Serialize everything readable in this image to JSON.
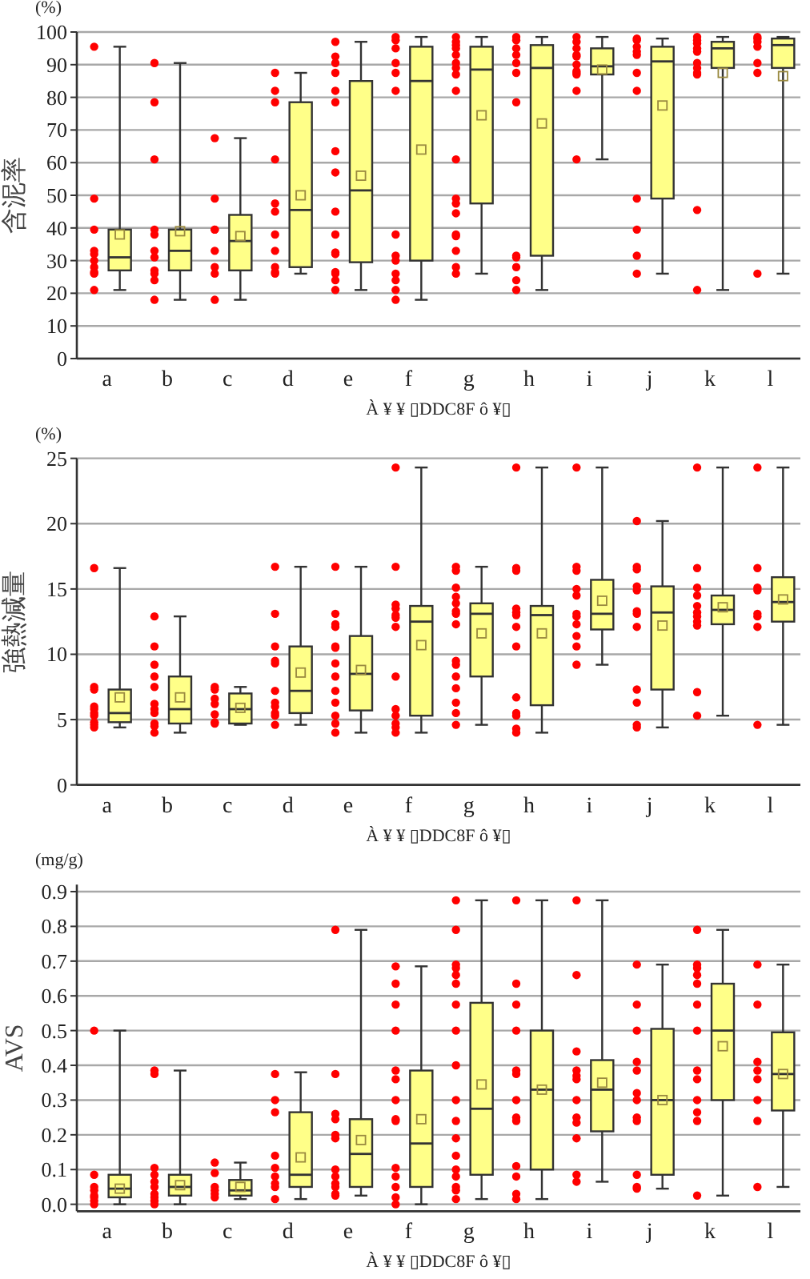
{
  "chart_data": [
    {
      "type": "box",
      "ylabel": "含泥率",
      "xlabel": "À ¥ ¥ ▯DDC8F ô ¥▯",
      "annotations": [
        "(%)"
      ],
      "categories": [
        "a",
        "b",
        "c",
        "d",
        "e",
        "f",
        "g",
        "h",
        "i",
        "j",
        "k",
        "l"
      ],
      "ylim": [
        0,
        100
      ],
      "yticks": [
        0,
        10,
        20,
        30,
        40,
        50,
        60,
        70,
        80,
        90,
        100
      ],
      "grid": "y",
      "series": [
        {
          "type": "scatter",
          "color": "#ff0000",
          "marker": "circle",
          "x": [
            "a",
            "a",
            "a",
            "a",
            "a",
            "a",
            "a",
            "a",
            "a",
            "a",
            "b",
            "b",
            "b",
            "b",
            "b",
            "b",
            "b",
            "b",
            "b",
            "b",
            "b",
            "c",
            "c",
            "c",
            "c",
            "c",
            "c",
            "c",
            "c",
            "d",
            "d",
            "d",
            "d",
            "d",
            "d",
            "d",
            "d",
            "d",
            "d",
            "d",
            "e",
            "e",
            "e",
            "e",
            "e",
            "e",
            "e",
            "e",
            "e",
            "e",
            "e",
            "e",
            "e",
            "e",
            "e",
            "e",
            "f",
            "f",
            "f",
            "f",
            "f",
            "f",
            "f",
            "f",
            "f",
            "f",
            "f",
            "f",
            "f",
            "g",
            "g",
            "g",
            "g",
            "g",
            "g",
            "g",
            "g",
            "g",
            "g",
            "g",
            "g",
            "g",
            "g",
            "g",
            "g",
            "g",
            "g",
            "h",
            "h",
            "h",
            "h",
            "h",
            "h",
            "h",
            "h",
            "h",
            "h",
            "h",
            "h",
            "i",
            "i",
            "i",
            "i",
            "i",
            "i",
            "i",
            "i",
            "i",
            "i",
            "i",
            "j",
            "j",
            "j",
            "j",
            "j",
            "j",
            "j",
            "j",
            "j",
            "j",
            "j",
            "k",
            "k",
            "k",
            "k",
            "k",
            "k",
            "k",
            "k",
            "k",
            "k",
            "k",
            "l",
            "l",
            "l",
            "l",
            "l",
            "l",
            "l"
          ],
          "values": [
            95.5,
            49,
            39.5,
            33,
            32,
            30,
            28,
            26.5,
            26,
            21,
            90.5,
            78.5,
            61,
            39.5,
            38,
            33,
            31,
            27,
            26,
            24,
            18,
            67.5,
            49,
            39.5,
            39.5,
            33,
            28,
            26,
            18,
            87.5,
            82,
            78.5,
            61,
            47.5,
            45,
            38,
            33,
            28,
            26.5,
            26,
            97,
            92.5,
            90.5,
            87.5,
            82,
            78.5,
            63.5,
            57,
            45,
            38,
            32.5,
            32,
            26.5,
            26,
            24,
            21,
            98.5,
            97.5,
            95,
            90.5,
            87.5,
            82,
            38,
            31.5,
            30,
            26,
            24,
            21,
            18,
            98.5,
            97,
            96,
            95,
            93,
            90.5,
            89,
            87,
            82,
            61,
            49,
            47.5,
            44.5,
            38,
            37.5,
            33,
            28,
            26,
            98.5,
            97.5,
            95,
            93,
            90.5,
            87.5,
            78.5,
            31.5,
            31,
            28,
            24,
            21,
            98.5,
            97,
            95,
            93,
            92.5,
            90,
            88,
            87.5,
            87,
            82,
            61,
            98,
            97.5,
            95.5,
            94,
            93,
            87.5,
            82,
            49,
            39.5,
            31.5,
            26,
            98.5,
            97.5,
            96.5,
            95,
            94,
            90.5,
            89,
            87.5,
            87,
            45.5,
            21,
            98.5,
            98,
            97,
            95.5,
            90.5,
            87.5,
            26
          ]
        },
        {
          "type": "box",
          "color": "#ffff88",
          "boxes": [
            {
              "low": 21,
              "q1": 27,
              "median": 31,
              "q3": 39.5,
              "high": 95.5,
              "mean": 38
            },
            {
              "low": 18,
              "q1": 27,
              "median": 33,
              "q3": 39.5,
              "high": 90.5,
              "mean": 39
            },
            {
              "low": 18,
              "q1": 27,
              "median": 36,
              "q3": 44,
              "high": 67.5,
              "mean": 37.5
            },
            {
              "low": 26,
              "q1": 28,
              "median": 45.5,
              "q3": 78.5,
              "high": 87.5,
              "mean": 50
            },
            {
              "low": 21,
              "q1": 29.5,
              "median": 51.5,
              "q3": 85,
              "high": 97,
              "mean": 56
            },
            {
              "low": 18,
              "q1": 30,
              "median": 85,
              "q3": 95.5,
              "high": 98.5,
              "mean": 64
            },
            {
              "low": 26,
              "q1": 47.5,
              "median": 88.5,
              "q3": 95.5,
              "high": 98.5,
              "mean": 74.5
            },
            {
              "low": 21,
              "q1": 31.5,
              "median": 89,
              "q3": 96,
              "high": 98.5,
              "mean": 72
            },
            {
              "low": 61,
              "q1": 87,
              "median": 89.5,
              "q3": 95,
              "high": 98.5,
              "mean": 88.5
            },
            {
              "low": 26,
              "q1": 49,
              "median": 91,
              "q3": 95.5,
              "high": 98,
              "mean": 77.5
            },
            {
              "low": 21,
              "q1": 89,
              "median": 95,
              "q3": 97,
              "high": 98.5,
              "mean": 87.5
            },
            {
              "low": 26,
              "q1": 89,
              "median": 96,
              "q3": 98,
              "high": 98.5,
              "mean": 86.5
            }
          ]
        }
      ]
    },
    {
      "type": "box",
      "ylabel": "強熱減量",
      "xlabel": "À ¥ ¥ ▯DDC8F ô ¥▯",
      "annotations": [
        "(%)"
      ],
      "categories": [
        "a",
        "b",
        "c",
        "d",
        "e",
        "f",
        "g",
        "h",
        "i",
        "j",
        "k",
        "l"
      ],
      "ylim": [
        0,
        25
      ],
      "yticks": [
        0,
        5,
        10,
        15,
        20,
        25
      ],
      "grid": "y",
      "series": [
        {
          "type": "scatter",
          "color": "#ff0000",
          "marker": "circle",
          "x": [
            "a",
            "a",
            "a",
            "a",
            "a",
            "a",
            "a",
            "a",
            "a",
            "a",
            "b",
            "b",
            "b",
            "b",
            "b",
            "b",
            "b",
            "b",
            "b",
            "b",
            "b",
            "c",
            "c",
            "c",
            "c",
            "c",
            "c",
            "c",
            "d",
            "d",
            "d",
            "d",
            "d",
            "d",
            "d",
            "d",
            "d",
            "d",
            "d",
            "e",
            "e",
            "e",
            "e",
            "e",
            "e",
            "e",
            "e",
            "e",
            "e",
            "e",
            "e",
            "e",
            "f",
            "f",
            "f",
            "f",
            "f",
            "f",
            "f",
            "f",
            "f",
            "f",
            "f",
            "f",
            "f",
            "g",
            "g",
            "g",
            "g",
            "g",
            "g",
            "g",
            "g",
            "g",
            "g",
            "g",
            "g",
            "g",
            "g",
            "g",
            "h",
            "h",
            "h",
            "h",
            "h",
            "h",
            "h",
            "h",
            "h",
            "h",
            "h",
            "h",
            "h",
            "i",
            "i",
            "i",
            "i",
            "i",
            "i",
            "i",
            "i",
            "i",
            "i",
            "i",
            "j",
            "j",
            "j",
            "j",
            "j",
            "j",
            "j",
            "j",
            "j",
            "j",
            "j",
            "j",
            "k",
            "k",
            "k",
            "k",
            "k",
            "k",
            "k",
            "k",
            "k",
            "k",
            "k",
            "l",
            "l",
            "l",
            "l",
            "l",
            "l",
            "l",
            "l"
          ],
          "values": [
            16.6,
            7.5,
            7.3,
            6.0,
            5.8,
            5.5,
            5.3,
            4.8,
            4.6,
            4.4,
            12.9,
            10.6,
            9.2,
            8.3,
            7.5,
            6.2,
            5.8,
            5.5,
            4.7,
            4.5,
            4.0,
            7.5,
            7.3,
            6.6,
            6.2,
            5.4,
            4.8,
            4.7,
            16.7,
            13.1,
            10.6,
            9.5,
            9.3,
            7.2,
            6.3,
            6.0,
            5.5,
            5.3,
            4.6,
            16.7,
            13.1,
            12.3,
            12.1,
            10.6,
            10.5,
            9.3,
            8.3,
            7.2,
            6.3,
            5.3,
            4.7,
            4.0,
            24.3,
            16.7,
            13.8,
            13.5,
            13.0,
            12.8,
            12.1,
            8.3,
            5.8,
            5.3,
            4.7,
            4.4,
            4.0,
            16.7,
            16.4,
            15.1,
            14.4,
            13.9,
            13.3,
            13.1,
            12.3,
            9.5,
            9.2,
            8.3,
            7.4,
            6.3,
            5.5,
            4.6,
            24.3,
            16.6,
            16.4,
            13.5,
            13.2,
            13.0,
            12.1,
            10.6,
            6.7,
            5.5,
            5.3,
            4.3,
            4.0,
            24.3,
            16.7,
            16.4,
            15.0,
            14.5,
            13.1,
            12.9,
            12.3,
            11.4,
            10.6,
            9.2,
            20.2,
            16.7,
            16.5,
            15.2,
            14.9,
            13.3,
            13.1,
            12.1,
            7.3,
            6.3,
            4.6,
            4.4,
            24.3,
            16.6,
            15.1,
            14.5,
            13.7,
            13.2,
            12.9,
            12.5,
            12.2,
            7.1,
            5.3,
            24.3,
            16.6,
            15.1,
            14.9,
            13.1,
            12.9,
            12.1,
            4.6
          ]
        },
        {
          "type": "box",
          "color": "#ffff88",
          "boxes": [
            {
              "low": 4.4,
              "q1": 4.8,
              "median": 5.5,
              "q3": 7.3,
              "high": 16.6,
              "mean": 6.7
            },
            {
              "low": 4.0,
              "q1": 4.7,
              "median": 5.8,
              "q3": 8.3,
              "high": 12.9,
              "mean": 6.7
            },
            {
              "low": 4.6,
              "q1": 4.7,
              "median": 5.8,
              "q3": 7.0,
              "high": 7.5,
              "mean": 5.9
            },
            {
              "low": 4.6,
              "q1": 5.5,
              "median": 7.2,
              "q3": 10.6,
              "high": 16.7,
              "mean": 8.6
            },
            {
              "low": 4.0,
              "q1": 5.7,
              "median": 8.5,
              "q3": 11.4,
              "high": 16.7,
              "mean": 8.8
            },
            {
              "low": 4.0,
              "q1": 5.3,
              "median": 12.5,
              "q3": 13.7,
              "high": 24.3,
              "mean": 10.7
            },
            {
              "low": 4.6,
              "q1": 8.3,
              "median": 13.1,
              "q3": 13.9,
              "high": 16.7,
              "mean": 11.6
            },
            {
              "low": 4.0,
              "q1": 6.1,
              "median": 13.0,
              "q3": 13.7,
              "high": 24.3,
              "mean": 11.6
            },
            {
              "low": 9.2,
              "q1": 11.9,
              "median": 13.1,
              "q3": 15.7,
              "high": 24.3,
              "mean": 14.1
            },
            {
              "low": 4.4,
              "q1": 7.3,
              "median": 13.2,
              "q3": 15.2,
              "high": 20.2,
              "mean": 12.2
            },
            {
              "low": 5.3,
              "q1": 12.3,
              "median": 13.4,
              "q3": 14.5,
              "high": 24.3,
              "mean": 13.6
            },
            {
              "low": 4.6,
              "q1": 12.5,
              "median": 14.0,
              "q3": 15.9,
              "high": 24.3,
              "mean": 14.2
            }
          ]
        }
      ]
    },
    {
      "type": "box",
      "ylabel": "AVS",
      "xlabel": "À ¥ ¥ ▯DDC8F ô ¥▯",
      "annotations": [
        "(mg/g)"
      ],
      "categories": [
        "a",
        "b",
        "c",
        "d",
        "e",
        "f",
        "g",
        "h",
        "i",
        "j",
        "k",
        "l"
      ],
      "ylim": [
        -0.02,
        0.92
      ],
      "yticks": [
        {
          "value": 0,
          "label": "0.0"
        },
        {
          "value": 0.1,
          "label": "0.1"
        },
        {
          "value": 0.2,
          "label": "0.2"
        },
        {
          "value": 0.3,
          "label": "0.3"
        },
        {
          "value": 0.4,
          "label": "0.4"
        },
        {
          "value": 0.5,
          "label": "0.5"
        },
        {
          "value": 0.6,
          "label": "0.6"
        },
        {
          "value": 0.7,
          "label": "0.7"
        },
        {
          "value": 0.8,
          "label": "0.8"
        },
        {
          "value": 0.9,
          "label": "0.9"
        }
      ],
      "grid": "y",
      "series": [
        {
          "type": "scatter",
          "color": "#ff0000",
          "marker": "circle",
          "x": [
            "a",
            "a",
            "a",
            "a",
            "a",
            "a",
            "a",
            "a",
            "b",
            "b",
            "b",
            "b",
            "b",
            "b",
            "b",
            "b",
            "b",
            "b",
            "c",
            "c",
            "c",
            "c",
            "c",
            "c",
            "d",
            "d",
            "d",
            "d",
            "d",
            "d",
            "d",
            "d",
            "d",
            "e",
            "e",
            "e",
            "e",
            "e",
            "e",
            "e",
            "e",
            "e",
            "e",
            "e",
            "e",
            "f",
            "f",
            "f",
            "f",
            "f",
            "f",
            "f",
            "f",
            "f",
            "f",
            "f",
            "f",
            "f",
            "f",
            "g",
            "g",
            "g",
            "g",
            "g",
            "g",
            "g",
            "g",
            "g",
            "g",
            "g",
            "g",
            "g",
            "g",
            "g",
            "g",
            "g",
            "g",
            "h",
            "h",
            "h",
            "h",
            "h",
            "h",
            "h",
            "h",
            "h",
            "h",
            "h",
            "h",
            "h",
            "i",
            "i",
            "i",
            "i",
            "i",
            "i",
            "i",
            "i",
            "i",
            "i",
            "i",
            "i",
            "j",
            "j",
            "j",
            "j",
            "j",
            "j",
            "j",
            "j",
            "j",
            "j",
            "j",
            "j",
            "k",
            "k",
            "k",
            "k",
            "k",
            "k",
            "k",
            "k",
            "k",
            "k",
            "k",
            "k",
            "k",
            "l",
            "l",
            "l",
            "l",
            "l",
            "l",
            "l",
            "l"
          ],
          "values": [
            0.5,
            0.085,
            0.05,
            0.04,
            0.025,
            0.02,
            0.01,
            0.0,
            0.385,
            0.375,
            0.105,
            0.085,
            0.065,
            0.05,
            0.03,
            0.02,
            0.01,
            0.0,
            0.12,
            0.09,
            0.05,
            0.04,
            0.03,
            0.02,
            0.375,
            0.3,
            0.265,
            0.14,
            0.105,
            0.08,
            0.06,
            0.05,
            0.015,
            0.79,
            0.375,
            0.26,
            0.245,
            0.2,
            0.19,
            0.1,
            0.08,
            0.06,
            0.05,
            0.03,
            0.025,
            0.685,
            0.635,
            0.575,
            0.5,
            0.385,
            0.36,
            0.3,
            0.245,
            0.24,
            0.105,
            0.08,
            0.05,
            0.02,
            0.0,
            0.875,
            0.79,
            0.69,
            0.68,
            0.66,
            0.635,
            0.575,
            0.5,
            0.4,
            0.3,
            0.24,
            0.19,
            0.14,
            0.1,
            0.08,
            0.05,
            0.04,
            0.015,
            0.875,
            0.635,
            0.575,
            0.5,
            0.385,
            0.375,
            0.3,
            0.25,
            0.24,
            0.11,
            0.08,
            0.03,
            0.015,
            0.875,
            0.66,
            0.44,
            0.385,
            0.37,
            0.36,
            0.3,
            0.25,
            0.235,
            0.19,
            0.085,
            0.065,
            0.69,
            0.575,
            0.5,
            0.41,
            0.385,
            0.32,
            0.3,
            0.25,
            0.24,
            0.085,
            0.05,
            0.045,
            0.79,
            0.69,
            0.68,
            0.66,
            0.635,
            0.575,
            0.5,
            0.385,
            0.36,
            0.3,
            0.265,
            0.24,
            0.025,
            0.69,
            0.575,
            0.41,
            0.385,
            0.36,
            0.3,
            0.24,
            0.05
          ]
        },
        {
          "type": "box",
          "color": "#ffff88",
          "boxes": [
            {
              "low": 0.0,
              "q1": 0.02,
              "median": 0.045,
              "q3": 0.085,
              "high": 0.5,
              "mean": 0.045
            },
            {
              "low": 0.0,
              "q1": 0.025,
              "median": 0.05,
              "q3": 0.085,
              "high": 0.385,
              "mean": 0.055
            },
            {
              "low": 0.015,
              "q1": 0.025,
              "median": 0.04,
              "q3": 0.07,
              "high": 0.12,
              "mean": 0.05
            },
            {
              "low": 0.015,
              "q1": 0.05,
              "median": 0.085,
              "q3": 0.265,
              "high": 0.38,
              "mean": 0.135
            },
            {
              "low": 0.025,
              "q1": 0.05,
              "median": 0.145,
              "q3": 0.245,
              "high": 0.79,
              "mean": 0.185
            },
            {
              "low": 0.0,
              "q1": 0.05,
              "median": 0.175,
              "q3": 0.385,
              "high": 0.685,
              "mean": 0.245
            },
            {
              "low": 0.015,
              "q1": 0.085,
              "median": 0.275,
              "q3": 0.58,
              "high": 0.875,
              "mean": 0.345
            },
            {
              "low": 0.015,
              "q1": 0.1,
              "median": 0.33,
              "q3": 0.5,
              "high": 0.875,
              "mean": 0.33
            },
            {
              "low": 0.065,
              "q1": 0.21,
              "median": 0.33,
              "q3": 0.415,
              "high": 0.875,
              "mean": 0.35
            },
            {
              "low": 0.045,
              "q1": 0.085,
              "median": 0.3,
              "q3": 0.505,
              "high": 0.69,
              "mean": 0.3
            },
            {
              "low": 0.025,
              "q1": 0.3,
              "median": 0.5,
              "q3": 0.635,
              "high": 0.79,
              "mean": 0.455
            },
            {
              "low": 0.05,
              "q1": 0.27,
              "median": 0.375,
              "q3": 0.495,
              "high": 0.69,
              "mean": 0.375
            }
          ]
        }
      ]
    }
  ]
}
